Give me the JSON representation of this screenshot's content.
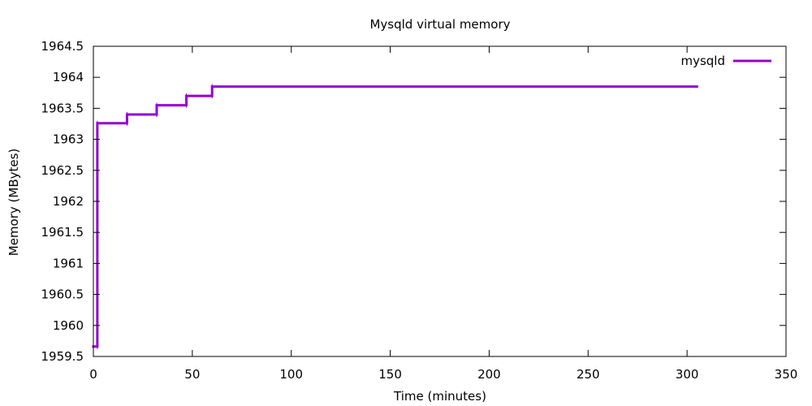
{
  "chart_data": {
    "type": "line",
    "title": "Mysqld virtual memory",
    "xlabel": "Time (minutes)",
    "ylabel": "Memory (MBytes)",
    "xlim": [
      0,
      350
    ],
    "ylim": [
      1959.5,
      1964.5
    ],
    "x_ticks": [
      0,
      50,
      100,
      150,
      200,
      250,
      300,
      350
    ],
    "y_ticks": [
      1959.5,
      1960,
      1960.5,
      1961,
      1961.5,
      1962,
      1962.5,
      1963,
      1963.5,
      1964,
      1964.5
    ],
    "x_tick_labels": [
      "0",
      "50",
      "100",
      "150",
      "200",
      "250",
      "300",
      "350"
    ],
    "y_tick_labels": [
      "1959.5",
      "1960",
      "1960.5",
      "1961",
      "1961.5",
      "1962",
      "1962.5",
      "1963",
      "1963.5",
      "1964",
      "1964.5"
    ],
    "grid": false,
    "legend_position": "top-right",
    "series": [
      {
        "name": "mysqld",
        "color": "#9400d3",
        "step": true,
        "points": [
          [
            0,
            1959.66
          ],
          [
            2,
            1959.66
          ],
          [
            2,
            1963.26
          ],
          [
            17,
            1963.26
          ],
          [
            17,
            1963.4
          ],
          [
            32,
            1963.4
          ],
          [
            32,
            1963.55
          ],
          [
            47,
            1963.55
          ],
          [
            47,
            1963.7
          ],
          [
            60,
            1963.7
          ],
          [
            60,
            1963.85
          ],
          [
            305,
            1963.85
          ]
        ]
      }
    ]
  }
}
